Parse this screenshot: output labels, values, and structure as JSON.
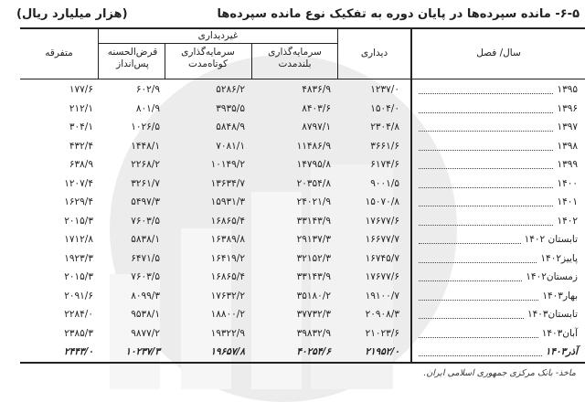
{
  "title": "۶-۵- مانده سپرده‌ها در پایان دوره به تفکیک نوع مانده سپرده‌ها",
  "unit": "(هزار میلیارد ریال)",
  "headers": {
    "period": "سال/ فصل",
    "demand": "دیداری",
    "non_demand": "غیردیداری",
    "long_term": "سرمایه‌گذاری بلندمدت",
    "short_term": "سرمایه‌گذاری کوتاه‌مدت",
    "qard": "قرض‌الحسنه پس‌انداز",
    "misc": "متفرقه"
  },
  "rows": [
    {
      "period": "۱۳۹۵",
      "demand": "۱۲۳۷/۰",
      "long_term": "۴۸۳۶/۹",
      "short_term": "۵۲۸۶/۲",
      "qard": "۶۰۲/۹",
      "misc": "۱۷۷/۶"
    },
    {
      "period": "۱۳۹۶",
      "demand": "۱۵۰۴/۰",
      "long_term": "۸۴۰۳/۶",
      "short_term": "۳۹۳۵/۵",
      "qard": "۸۰۱/۹",
      "misc": "۲۱۲/۱"
    },
    {
      "period": "۱۳۹۷",
      "demand": "۲۳۰۴/۸",
      "long_term": "۸۷۹۷/۱",
      "short_term": "۵۸۴۸/۹",
      "qard": "۱۰۲۶/۵",
      "misc": "۳۰۴/۱"
    },
    {
      "period": "۱۳۹۸",
      "demand": "۳۶۶۱/۶",
      "long_term": "۱۱۴۸۶/۹",
      "short_term": "۷۰۸۱/۱",
      "qard": "۱۴۴۸/۱",
      "misc": "۴۳۲/۴"
    },
    {
      "period": "۱۳۹۹",
      "demand": "۶۱۷۴/۶",
      "long_term": "۱۴۷۹۵/۸",
      "short_term": "۱۰۱۴۹/۲",
      "qard": "۲۲۶۸/۲",
      "misc": "۶۳۸/۹"
    },
    {
      "period": "۱۴۰۰",
      "demand": "۹۰۰۱/۵",
      "long_term": "۲۰۳۵۴/۸",
      "short_term": "۱۳۶۳۴/۷",
      "qard": "۳۲۶۱/۷",
      "misc": "۱۲۰۷/۴"
    },
    {
      "period": "۱۴۰۱",
      "demand": "۱۵۰۷۰/۸",
      "long_term": "۲۴۰۲۱/۹",
      "short_term": "۱۵۹۳۱/۳",
      "qard": "۵۴۹۷/۳",
      "misc": "۱۶۲۹/۴"
    },
    {
      "period": "۱۴۰۲",
      "demand": "۱۷۶۷۷/۶",
      "long_term": "۳۳۱۴۳/۹",
      "short_term": "۱۶۸۶۵/۴",
      "qard": "۷۶۰۳/۵",
      "misc": "۲۰۱۵/۳"
    },
    {
      "period": "تابستان ۱۴۰۲",
      "demand": "۱۶۶۷۷/۷",
      "long_term": "۲۹۱۳۷/۳",
      "short_term": "۱۶۳۸۹/۸",
      "qard": "۵۸۳۸/۱",
      "misc": "۱۷۱۲/۸"
    },
    {
      "period": "پاییز۱۴۰۲",
      "demand": "۱۶۷۴۵/۷",
      "long_term": "۳۲۱۵۲/۳",
      "short_term": "۱۶۴۱۹/۲",
      "qard": "۶۴۷۱/۵",
      "misc": "۱۹۲۳/۳"
    },
    {
      "period": "زمستان۱۴۰۲",
      "demand": "۱۷۶۷۷/۶",
      "long_term": "۳۳۱۴۳/۹",
      "short_term": "۱۶۸۶۵/۴",
      "qard": "۷۶۰۳/۵",
      "misc": "۲۰۱۵/۳"
    },
    {
      "period": "بهار۱۴۰۳",
      "demand": "۱۹۱۰۰/۷",
      "long_term": "۳۵۱۸۰/۲",
      "short_term": "۱۷۶۳۲/۲",
      "qard": "۸۰۹۹/۳",
      "misc": "۲۰۹۱/۶"
    },
    {
      "period": "تابستان۱۴۰۳",
      "demand": "۲۰۹۰۸/۳",
      "long_term": "۳۷۷۳۲/۳",
      "short_term": "۱۸۸۰۰/۲",
      "qard": "۹۵۳۸/۱",
      "misc": "۲۲۸۴/۰"
    },
    {
      "period": "آبان۱۴۰۳",
      "demand": "۲۱۰۲۳/۶",
      "long_term": "۳۹۸۳۲/۹",
      "short_term": "۱۹۳۲۲/۹",
      "qard": "۹۸۷۷/۲",
      "misc": "۲۳۸۵/۳"
    },
    {
      "period": "آذر۱۴۰۳",
      "demand": "۲۱۹۵۲/۰",
      "long_term": "۴۰۲۵۴/۶",
      "short_term": "۱۹۶۵۷/۸",
      "qard": "۱۰۲۳۷/۳",
      "misc": "۲۴۴۳/۰"
    }
  ],
  "source": "ماخذ- بانک مرکزی جمهوری اسلامی ایران."
}
